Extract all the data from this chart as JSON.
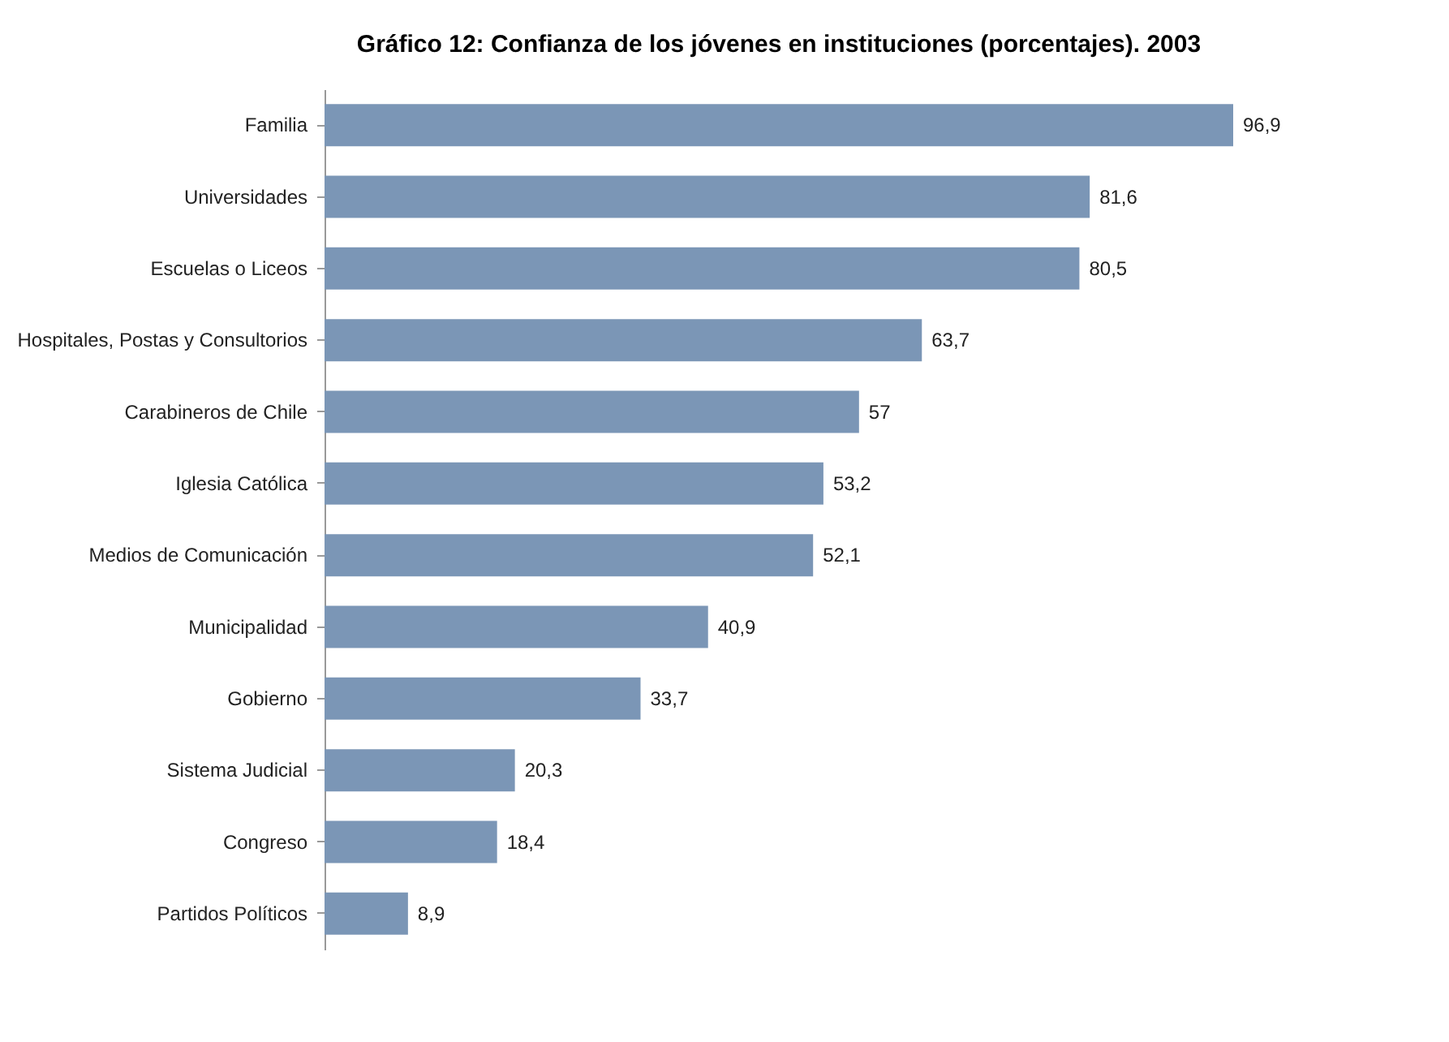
{
  "chart_data": {
    "type": "bar",
    "orientation": "horizontal",
    "title": "Gráfico 12: Confianza de los jóvenes en instituciones (porcentajes). 2003",
    "categories": [
      "Familia",
      "Universidades",
      "Escuelas o Liceos",
      "Hospitales, Postas y Consultorios",
      "Carabineros de Chile",
      "Iglesia Católica",
      "Medios de Comunicación",
      "Municipalidad",
      "Gobierno",
      "Sistema Judicial",
      "Congreso",
      "Partidos Políticos"
    ],
    "values": [
      96.9,
      81.6,
      80.5,
      63.7,
      57,
      53.2,
      52.1,
      40.9,
      33.7,
      20.3,
      18.4,
      8.9
    ],
    "value_labels": [
      "96,9",
      "81,6",
      "80,5",
      "63,7",
      "57",
      "53,2",
      "52,1",
      "40,9",
      "33,7",
      "20,3",
      "18,4",
      "8,9"
    ],
    "color": "#7b96b6"
  }
}
